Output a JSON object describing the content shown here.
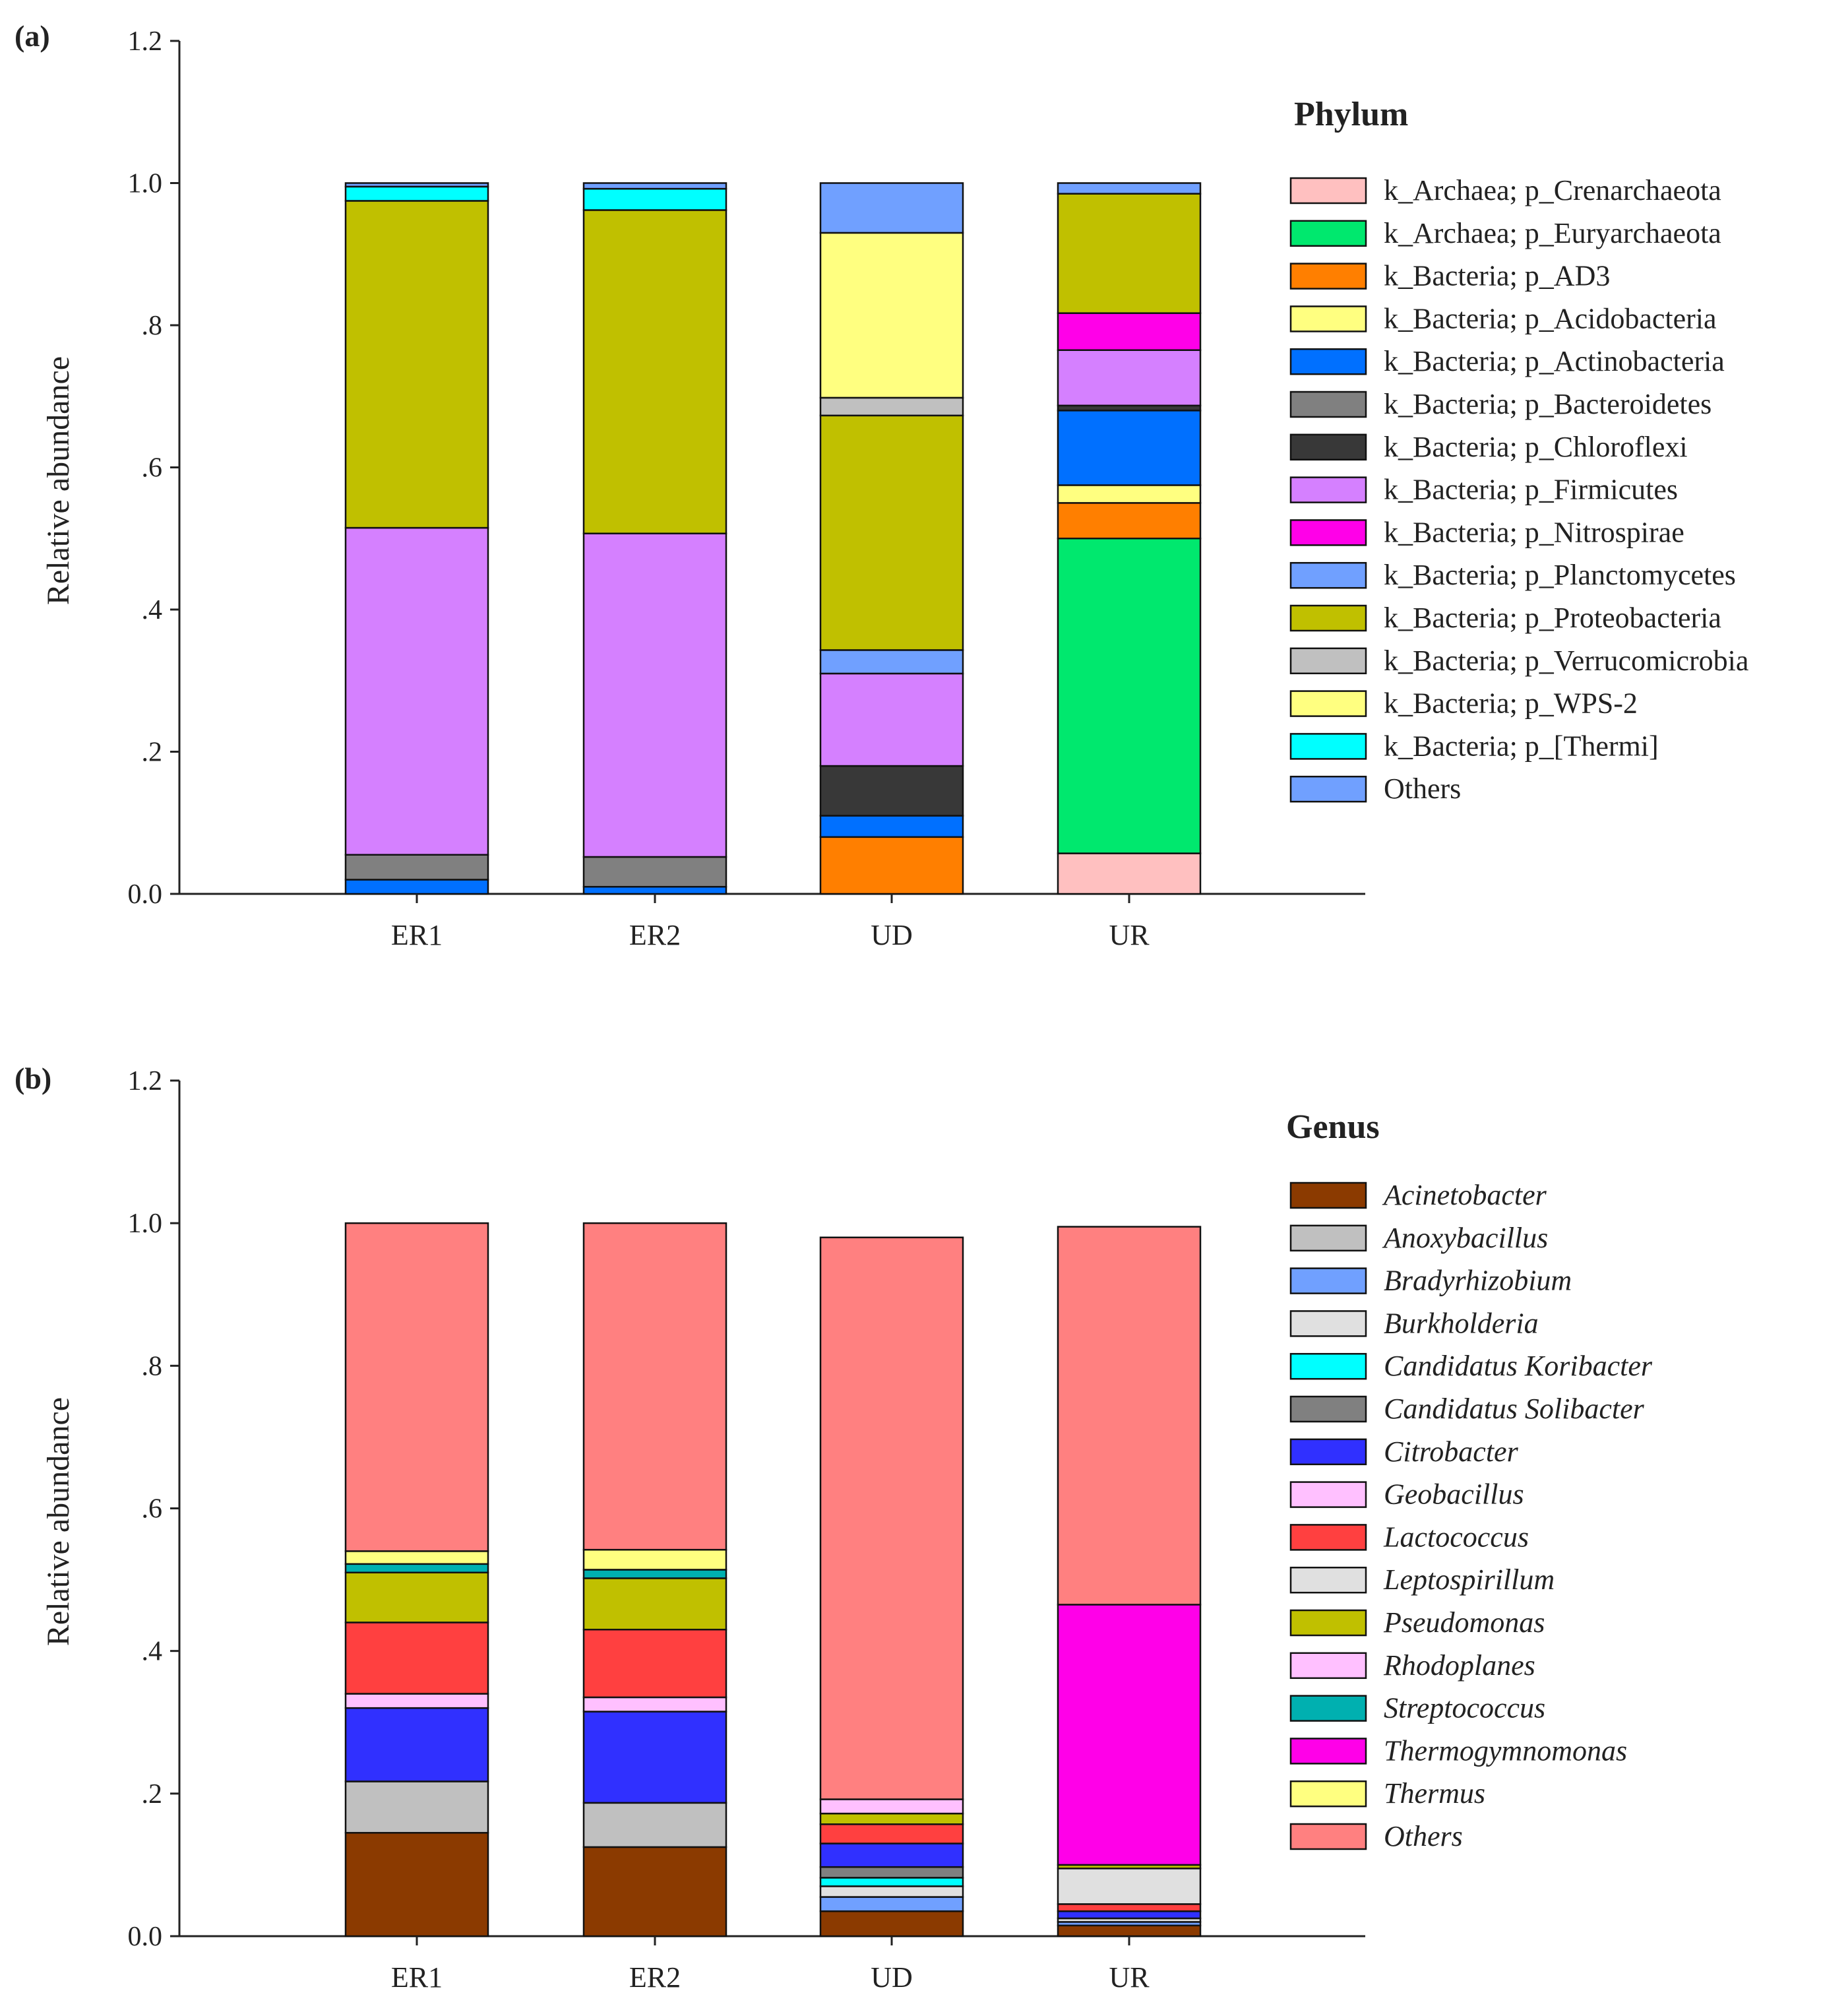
{
  "chart_data": [
    {
      "type": "bar",
      "stacked": true,
      "panel_label": "(a)",
      "ylabel": "Relative abundance",
      "xlabel": "",
      "ylim": [
        0,
        1.2
      ],
      "yticks": [
        "0.0",
        ".2",
        ".4",
        ".6",
        ".8",
        "1.0",
        "1.2"
      ],
      "categories": [
        "ER1",
        "ER2",
        "UD",
        "UR"
      ],
      "legend_title": "Phylum",
      "legend_italic": false,
      "legend_position": "right",
      "series": [
        {
          "name": "k_Archaea; p_Crenarchaeota",
          "color": "#FFC0C0",
          "values": [
            0.0,
            0.0,
            0.0,
            0.057
          ]
        },
        {
          "name": "k_Archaea; p_Euryarchaeota",
          "color": "#00E86E",
          "values": [
            0.0,
            0.0,
            0.0,
            0.443
          ]
        },
        {
          "name": "k_Bacteria; p_AD3",
          "color": "#FF7F00",
          "values": [
            0.0,
            0.0,
            0.08,
            0.05
          ]
        },
        {
          "name": "k_Bacteria; p_Acidobacteria",
          "color": "#FFFF80",
          "values": [
            0.0,
            0.0,
            0.0,
            0.025
          ]
        },
        {
          "name": "k_Bacteria; p_Actinobacteria",
          "color": "#0070FF",
          "values": [
            0.02,
            0.01,
            0.03,
            0.105
          ]
        },
        {
          "name": "k_Bacteria; p_Bacteroidetes",
          "color": "#808080",
          "values": [
            0.035,
            0.042,
            0.0,
            0.0
          ]
        },
        {
          "name": "k_Bacteria; p_Chloroflexi",
          "color": "#383838",
          "values": [
            0.0,
            0.0,
            0.07,
            0.007
          ]
        },
        {
          "name": "k_Bacteria; p_Firmicutes",
          "color": "#D580FF",
          "values": [
            0.46,
            0.455,
            0.13,
            0.078
          ]
        },
        {
          "name": "k_Bacteria; p_Nitrospirae",
          "color": "#FF00E8",
          "values": [
            0.0,
            0.0,
            0.0,
            0.052
          ]
        },
        {
          "name": "k_Bacteria; p_Planctomycetes",
          "color": "#70A0FF",
          "values": [
            0.0,
            0.0,
            0.033,
            0.0
          ]
        },
        {
          "name": "k_Bacteria; p_Proteobacteria",
          "color": "#C0C000",
          "values": [
            0.46,
            0.455,
            0.33,
            0.168
          ]
        },
        {
          "name": "k_Bacteria; p_Verrucomicrobia",
          "color": "#C0C0C0",
          "values": [
            0.0,
            0.0,
            0.025,
            0.0
          ]
        },
        {
          "name": "k_Bacteria; p_WPS-2",
          "color": "#FFFF80",
          "values": [
            0.0,
            0.0,
            0.232,
            0.0
          ]
        },
        {
          "name": "k_Bacteria; p_[Thermi]",
          "color": "#00FFFF",
          "values": [
            0.02,
            0.03,
            0.0,
            0.0
          ]
        },
        {
          "name": "Others",
          "color": "#70A0FF",
          "values": [
            0.005,
            0.008,
            0.07,
            0.015
          ]
        }
      ]
    },
    {
      "type": "bar",
      "stacked": true,
      "panel_label": "(b)",
      "ylabel": "Relative abundance",
      "xlabel": "",
      "ylim": [
        0,
        1.2
      ],
      "yticks": [
        "0.0",
        ".2",
        ".4",
        ".6",
        ".8",
        "1.0",
        "1.2"
      ],
      "categories": [
        "ER1",
        "ER2",
        "UD",
        "UR"
      ],
      "legend_title": "Genus",
      "legend_italic": true,
      "legend_position": "right",
      "series": [
        {
          "name": "Acinetobacter",
          "color": "#8B3A00",
          "values": [
            0.145,
            0.125,
            0.035,
            0.015
          ]
        },
        {
          "name": "Anoxybacillus",
          "color": "#C0C0C0",
          "values": [
            0.072,
            0.062,
            0.0,
            0.0
          ]
        },
        {
          "name": "Bradyrhizobium",
          "color": "#70A0FF",
          "values": [
            0.0,
            0.0,
            0.02,
            0.005
          ]
        },
        {
          "name": "Burkholderia",
          "color": "#E0E0E0",
          "values": [
            0.0,
            0.0,
            0.015,
            0.005
          ]
        },
        {
          "name": "Candidatus Koribacter",
          "color": "#00FFFF",
          "values": [
            0.0,
            0.0,
            0.012,
            0.0
          ]
        },
        {
          "name": "Candidatus Solibacter",
          "color": "#808080",
          "values": [
            0.0,
            0.0,
            0.015,
            0.0
          ]
        },
        {
          "name": "Citrobacter",
          "color": "#3030FF",
          "values": [
            0.103,
            0.128,
            0.033,
            0.01
          ]
        },
        {
          "name": "Geobacillus",
          "color": "#FFC0FF",
          "values": [
            0.02,
            0.02,
            0.0,
            0.0
          ]
        },
        {
          "name": "Lactococcus",
          "color": "#FF4040",
          "values": [
            0.1,
            0.095,
            0.027,
            0.01
          ]
        },
        {
          "name": "Leptospirillum",
          "color": "#E0E0E0",
          "values": [
            0.0,
            0.0,
            0.0,
            0.05
          ]
        },
        {
          "name": "Pseudomonas",
          "color": "#C0C000",
          "values": [
            0.07,
            0.072,
            0.015,
            0.005
          ]
        },
        {
          "name": "Rhodoplanes",
          "color": "#FFC0FF",
          "values": [
            0.0,
            0.0,
            0.02,
            0.0
          ]
        },
        {
          "name": "Streptococcus",
          "color": "#00B0B0",
          "values": [
            0.012,
            0.012,
            0.0,
            0.0
          ]
        },
        {
          "name": "Thermogymnomonas",
          "color": "#FF00E8",
          "values": [
            0.0,
            0.0,
            0.0,
            0.365
          ]
        },
        {
          "name": "Thermus",
          "color": "#FFFF80",
          "values": [
            0.018,
            0.028,
            0.0,
            0.0
          ]
        },
        {
          "name": "Others",
          "color": "#FF8080",
          "values": [
            0.46,
            0.458,
            0.788,
            0.53
          ]
        }
      ]
    }
  ]
}
